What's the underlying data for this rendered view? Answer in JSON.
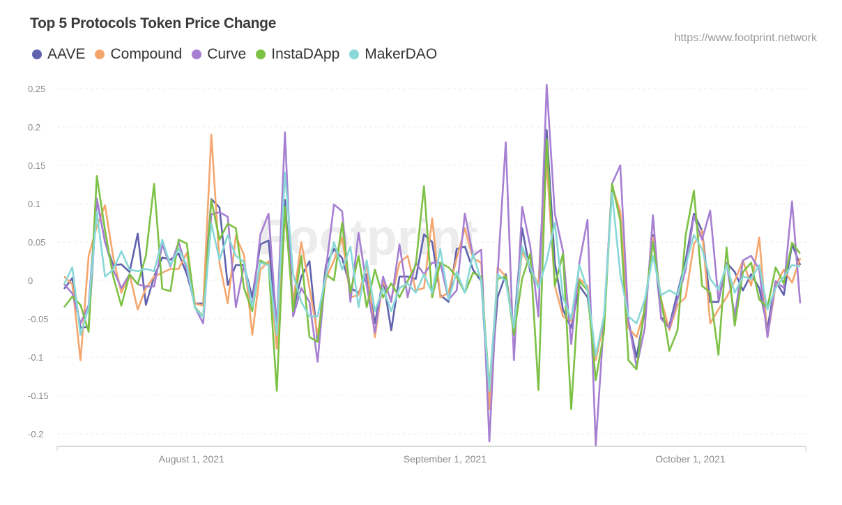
{
  "chart_data": {
    "type": "line",
    "title": "Top 5 Protocols Token Price Change",
    "source": "https://www.footprint.network",
    "watermark": "Footprint",
    "xlabel": "",
    "ylabel": "",
    "ylim": [
      -0.2,
      0.25
    ],
    "y_ticks": [
      "0.25",
      "0.2",
      "0.15",
      "0.1",
      "0.05",
      "0",
      "-0.05",
      "-0.1",
      "-0.15",
      "-0.2"
    ],
    "x_ticks": [
      {
        "label": "August 1, 2021",
        "date": "2021-08-01"
      },
      {
        "label": "September 1, 2021",
        "date": "2021-09-01"
      },
      {
        "label": "October 1, 2021",
        "date": "2021-10-01"
      }
    ],
    "grid": true,
    "legend_position": "top-left",
    "x": [
      "2021-07-16",
      "2021-07-17",
      "2021-07-18",
      "2021-07-19",
      "2021-07-20",
      "2021-07-21",
      "2021-07-22",
      "2021-07-23",
      "2021-07-24",
      "2021-07-25",
      "2021-07-26",
      "2021-07-27",
      "2021-07-28",
      "2021-07-29",
      "2021-07-30",
      "2021-07-31",
      "2021-08-01",
      "2021-08-02",
      "2021-08-03",
      "2021-08-04",
      "2021-08-05",
      "2021-08-06",
      "2021-08-07",
      "2021-08-08",
      "2021-08-09",
      "2021-08-10",
      "2021-08-11",
      "2021-08-12",
      "2021-08-13",
      "2021-08-14",
      "2021-08-15",
      "2021-08-16",
      "2021-08-17",
      "2021-08-18",
      "2021-08-19",
      "2021-08-20",
      "2021-08-21",
      "2021-08-22",
      "2021-08-23",
      "2021-08-24",
      "2021-08-25",
      "2021-08-26",
      "2021-08-27",
      "2021-08-28",
      "2021-08-29",
      "2021-08-30",
      "2021-08-31",
      "2021-09-01",
      "2021-09-02",
      "2021-09-03",
      "2021-09-04",
      "2021-09-05",
      "2021-09-06",
      "2021-09-07",
      "2021-09-08",
      "2021-09-09",
      "2021-09-10",
      "2021-09-11",
      "2021-09-12",
      "2021-09-13",
      "2021-09-14",
      "2021-09-15",
      "2021-09-16",
      "2021-09-17",
      "2021-09-18",
      "2021-09-19",
      "2021-09-20",
      "2021-09-21",
      "2021-09-22",
      "2021-09-23",
      "2021-09-24",
      "2021-09-25",
      "2021-09-26",
      "2021-09-27",
      "2021-09-28",
      "2021-09-29",
      "2021-09-30",
      "2021-10-01",
      "2021-10-02",
      "2021-10-03",
      "2021-10-04",
      "2021-10-05",
      "2021-10-06",
      "2021-10-07",
      "2021-10-08",
      "2021-10-09",
      "2021-10-10",
      "2021-10-11",
      "2021-10-12",
      "2021-10-13",
      "2021-10-14"
    ],
    "series": [
      {
        "name": "AAVE",
        "color": "#5f62ad",
        "values": [
          -0.011,
          0.003,
          -0.062,
          -0.06,
          0.105,
          0.05,
          0.02,
          0.021,
          0.011,
          0.061,
          -0.032,
          0.005,
          0.03,
          0.027,
          0.035,
          0.008,
          -0.03,
          -0.03,
          0.106,
          0.095,
          -0.006,
          0.02,
          0.02,
          -0.022,
          0.047,
          0.052,
          -0.065,
          0.105,
          -0.04,
          0.005,
          0.025,
          -0.08,
          0.02,
          0.041,
          0.029,
          -0.01,
          -0.016,
          0.008,
          -0.056,
          0.002,
          -0.065,
          0.005,
          0.005,
          0.002,
          0.06,
          0.05,
          -0.019,
          -0.028,
          0.041,
          0.044,
          0.014,
          -0.001,
          -0.16,
          -0.022,
          0.008,
          -0.062,
          0.068,
          0.011,
          -0.007,
          0.196,
          0.023,
          -0.038,
          -0.062,
          -0.007,
          -0.022,
          -0.098,
          -0.053,
          0.123,
          0.084,
          -0.053,
          -0.1,
          -0.04,
          0.059,
          -0.048,
          -0.059,
          -0.016,
          0.026,
          0.087,
          0.065,
          -0.028,
          -0.028,
          0.023,
          0.011,
          -0.013,
          0.008,
          -0.01,
          -0.062,
          -0.001,
          -0.019,
          0.047,
          0.02
        ]
      },
      {
        "name": "Compound",
        "color": "#f5a66e",
        "values": [
          0.005,
          -0.005,
          -0.104,
          0.032,
          0.07,
          0.098,
          0.03,
          -0.016,
          0.008,
          -0.038,
          -0.01,
          0.005,
          0.01,
          0.015,
          0.015,
          0.036,
          -0.03,
          -0.033,
          0.19,
          0.023,
          -0.03,
          0.058,
          0.033,
          -0.071,
          0.014,
          0.025,
          -0.089,
          0.087,
          -0.028,
          0.05,
          -0.01,
          -0.071,
          0.002,
          0.026,
          0.056,
          -0.022,
          -0.019,
          0.02,
          -0.074,
          -0.001,
          -0.025,
          0.023,
          0.032,
          -0.013,
          -0.01,
          0.081,
          -0.022,
          -0.016,
          0.029,
          0.068,
          0.029,
          0.023,
          -0.168,
          0.017,
          0.005,
          -0.062,
          0.038,
          0.017,
          -0.007,
          0.153,
          -0.007,
          -0.047,
          -0.053,
          0.002,
          -0.007,
          -0.104,
          -0.053,
          0.123,
          0.09,
          -0.062,
          -0.074,
          -0.038,
          0.056,
          -0.025,
          -0.065,
          -0.032,
          -0.022,
          0.047,
          0.065,
          -0.056,
          -0.038,
          -0.022,
          -0.001,
          0.026,
          -0.007,
          0.056,
          -0.074,
          -0.007,
          0.014,
          -0.003,
          0.029
        ]
      },
      {
        "name": "Curve",
        "color": "#a67fd2",
        "values": [
          -0.005,
          -0.017,
          -0.056,
          -0.032,
          0.107,
          0.05,
          0.014,
          -0.01,
          0.008,
          -0.005,
          -0.008,
          -0.008,
          0.047,
          0.018,
          0.05,
          0.014,
          -0.035,
          -0.056,
          0.086,
          0.089,
          0.083,
          -0.035,
          0.02,
          -0.035,
          0.06,
          0.087,
          -0.062,
          0.193,
          -0.047,
          -0.01,
          -0.028,
          -0.106,
          0.014,
          0.099,
          0.09,
          -0.028,
          0.062,
          -0.007,
          -0.068,
          0.005,
          -0.028,
          0.047,
          -0.022,
          0.023,
          0.008,
          0.023,
          0.023,
          -0.025,
          -0.013,
          0.087,
          0.032,
          0.04,
          -0.21,
          0.008,
          0.18,
          -0.104,
          0.096,
          0.044,
          -0.047,
          0.255,
          0.087,
          0.038,
          -0.083,
          0.023,
          0.079,
          -0.215,
          -0.053,
          0.126,
          0.15,
          -0.053,
          -0.113,
          -0.062,
          0.085,
          -0.05,
          -0.062,
          -0.025,
          0.014,
          0.084,
          0.053,
          0.091,
          -0.025,
          0.023,
          -0.047,
          0.026,
          0.032,
          0.014,
          -0.074,
          -0.001,
          -0.01,
          0.103,
          -0.03
        ]
      },
      {
        "name": "InstaDApp",
        "color": "#7cc144",
        "values": [
          -0.035,
          -0.021,
          -0.032,
          -0.067,
          0.136,
          0.065,
          0.005,
          -0.033,
          0.008,
          -0.005,
          0.032,
          0.126,
          -0.011,
          -0.014,
          0.053,
          0.048,
          -0.035,
          -0.047,
          0.105,
          0.053,
          0.074,
          0.068,
          -0.01,
          -0.04,
          0.026,
          0.02,
          -0.144,
          0.096,
          -0.04,
          0.032,
          -0.074,
          -0.08,
          0.008,
          0,
          0.075,
          -0.016,
          0.032,
          -0.035,
          0.014,
          -0.022,
          -0.004,
          -0.022,
          -0.001,
          0.02,
          0.123,
          -0.022,
          0.023,
          0.017,
          0.005,
          -0.016,
          0.01,
          0.005,
          -0.14,
          0.002,
          0.005,
          -0.071,
          0.002,
          0.035,
          -0.143,
          0.184,
          -0.007,
          0.035,
          -0.168,
          -0.001,
          -0.013,
          -0.13,
          -0.068,
          0.126,
          0.078,
          -0.104,
          -0.116,
          -0.032,
          0.05,
          -0.025,
          -0.092,
          -0.065,
          0.059,
          0.117,
          -0.007,
          -0.016,
          -0.097,
          0.043,
          -0.059,
          0.011,
          0.023,
          -0.025,
          -0.035,
          0.017,
          -0.004,
          0.049,
          0.035
        ]
      },
      {
        "name": "MakerDAO",
        "color": "#88d8d8",
        "values": [
          -0.005,
          0.017,
          -0.071,
          -0.035,
          0.089,
          0.005,
          0.014,
          0.038,
          0.014,
          0.012,
          0.015,
          0.012,
          0.053,
          0.02,
          0.041,
          0.02,
          -0.036,
          -0.048,
          0.074,
          0.027,
          0.059,
          0.032,
          0.024,
          -0.035,
          0.023,
          0.02,
          -0.071,
          0.141,
          0.008,
          -0.028,
          -0.047,
          -0.047,
          0.005,
          0.05,
          0.014,
          0.044,
          -0.035,
          0.026,
          -0.04,
          -0.01,
          -0.04,
          -0.01,
          -0.004,
          -0.016,
          0.008,
          -0.016,
          0.041,
          -0.025,
          0.011,
          -0.016,
          0.035,
          -0.001,
          -0.144,
          0.008,
          -0.001,
          -0.062,
          0.044,
          0.017,
          -0.01,
          0.026,
          0.075,
          -0.022,
          -0.05,
          0.02,
          -0.013,
          -0.098,
          -0.047,
          0.114,
          0.008,
          -0.047,
          -0.056,
          -0.025,
          0.032,
          -0.019,
          -0.013,
          -0.019,
          0.02,
          0.059,
          0.041,
          0.002,
          -0.012,
          0.02,
          -0.016,
          0.005,
          0.002,
          0.02,
          -0.038,
          -0.01,
          0.005,
          0.02,
          0.018
        ]
      }
    ]
  }
}
